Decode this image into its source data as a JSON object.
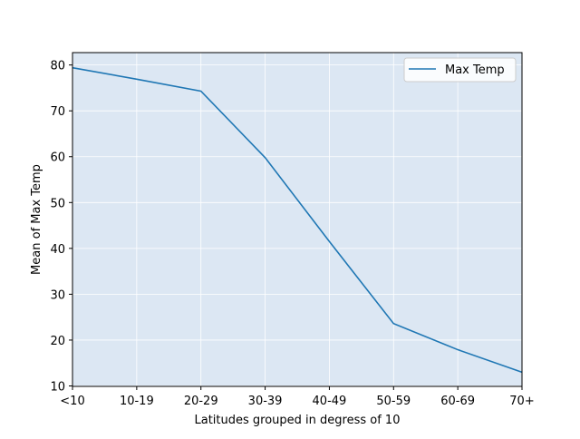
{
  "chart_data": {
    "type": "line",
    "title": "",
    "xlabel": "Latitudes grouped in degress of 10",
    "ylabel": "Mean of Max Temp",
    "categories": [
      "<10",
      "10-19",
      "20-29",
      "30-39",
      "40-49",
      "50-59",
      "60-69",
      "70+"
    ],
    "series": [
      {
        "name": "Max Temp",
        "values": [
          79.4,
          76.9,
          74.3,
          59.8,
          41.5,
          23.6,
          17.9,
          13.0
        ]
      }
    ],
    "ylim": [
      9.9,
      82.7
    ],
    "yticks": [
      10,
      20,
      30,
      40,
      50,
      60,
      70,
      80
    ],
    "grid": true,
    "legend_position": "top-right",
    "colors": {
      "plot_background": "#dce7f3",
      "grid": "#ffffff",
      "line": "#1f77b4"
    }
  }
}
